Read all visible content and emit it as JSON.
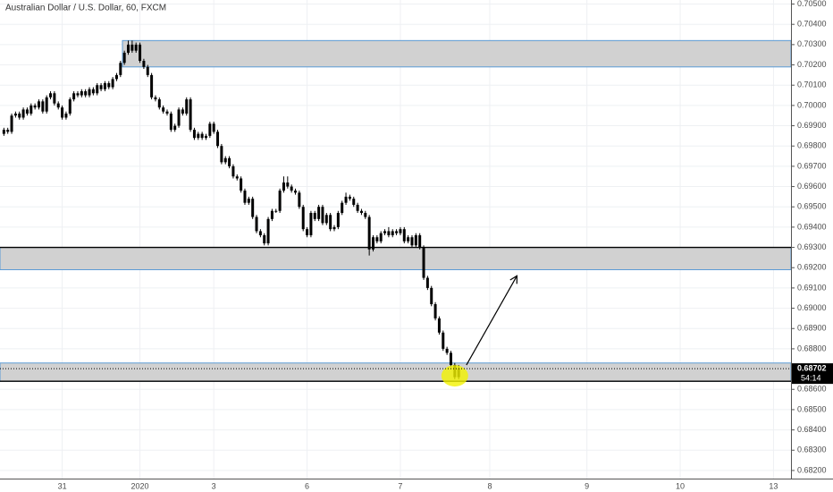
{
  "chart_data": {
    "type": "candlestick",
    "title": "Australian Dollar / U.S. Dollar, 60, FXCM",
    "xlim": [
      -1,
      202.5
    ],
    "xticks": [
      {
        "value": 15,
        "label": "31"
      },
      {
        "value": 35,
        "label": "2020"
      },
      {
        "value": 54,
        "label": "3"
      },
      {
        "value": 78,
        "label": "6"
      },
      {
        "value": 102,
        "label": "7"
      },
      {
        "value": 125,
        "label": "8"
      },
      {
        "value": 150,
        "label": "9"
      },
      {
        "value": 174,
        "label": "10"
      },
      {
        "value": 198,
        "label": "13"
      }
    ],
    "ylim": [
      0.6816,
      0.7052
    ],
    "yticks": [
      {
        "value": 0.705,
        "label": "0.70500"
      },
      {
        "value": 0.704,
        "label": "0.70400"
      },
      {
        "value": 0.703,
        "label": "0.70300"
      },
      {
        "value": 0.702,
        "label": "0.70200"
      },
      {
        "value": 0.701,
        "label": "0.70100"
      },
      {
        "value": 0.7,
        "label": "0.70000"
      },
      {
        "value": 0.699,
        "label": "0.69900"
      },
      {
        "value": 0.698,
        "label": "0.69800"
      },
      {
        "value": 0.697,
        "label": "0.69700"
      },
      {
        "value": 0.696,
        "label": "0.69600"
      },
      {
        "value": 0.695,
        "label": "0.69500"
      },
      {
        "value": 0.694,
        "label": "0.69400"
      },
      {
        "value": 0.693,
        "label": "0.69300"
      },
      {
        "value": 0.692,
        "label": "0.69200"
      },
      {
        "value": 0.691,
        "label": "0.69100"
      },
      {
        "value": 0.69,
        "label": "0.69000"
      },
      {
        "value": 0.689,
        "label": "0.68900"
      },
      {
        "value": 0.688,
        "label": "0.68800"
      },
      {
        "value": 0.687,
        "label": "0.68700"
      },
      {
        "value": 0.686,
        "label": "0.68600"
      },
      {
        "value": 0.685,
        "label": "0.68500"
      },
      {
        "value": 0.684,
        "label": "0.68400"
      },
      {
        "value": 0.683,
        "label": "0.68300"
      },
      {
        "value": 0.682,
        "label": "0.68200"
      }
    ],
    "grid": true,
    "color": "#000000",
    "open": [
      0.6986,
      0.6988,
      0.6987,
      0.6995,
      0.6996,
      0.6994,
      0.6998,
      0.6996,
      0.7,
      0.6999,
      0.7002,
      0.6997,
      0.7004,
      0.7006,
      0.7001,
      0.6999,
      0.6994,
      0.6996,
      0.7003,
      0.7006,
      0.7005,
      0.7007,
      0.7005,
      0.7008,
      0.7006,
      0.701,
      0.7008,
      0.7011,
      0.7009,
      0.7013,
      0.7015,
      0.7021,
      0.7026,
      0.703,
      0.7027,
      0.703,
      0.7022,
      0.7019,
      0.7015,
      0.7004,
      0.7003,
      0.6999,
      0.6997,
      0.6996,
      0.6988,
      0.699,
      0.6998,
      0.6996,
      0.7003,
      0.6988,
      0.6984,
      0.6986,
      0.6984,
      0.6985,
      0.6991,
      0.6987,
      0.698,
      0.6972,
      0.6974,
      0.697,
      0.6965,
      0.6964,
      0.6958,
      0.6952,
      0.6954,
      0.6945,
      0.6938,
      0.6936,
      0.6932,
      0.6944,
      0.6948,
      0.6948,
      0.6958,
      0.6962,
      0.696,
      0.6958,
      0.6957,
      0.695,
      0.6939,
      0.6936,
      0.6947,
      0.6944,
      0.695,
      0.6942,
      0.6946,
      0.6939,
      0.694,
      0.6947,
      0.6952,
      0.6955,
      0.6954,
      0.6951,
      0.6948,
      0.6947,
      0.6945,
      0.6929,
      0.6935,
      0.6933,
      0.6937,
      0.6938,
      0.6936,
      0.6938,
      0.6937,
      0.6939,
      0.6933,
      0.6935,
      0.6931,
      0.6936,
      0.693,
      0.6915,
      0.691,
      0.6902,
      0.6895,
      0.6888,
      0.688,
      0.6878,
      0.6872,
      0.6866
    ],
    "high": [
      0.6989,
      0.6989,
      0.6996,
      0.6997,
      0.6997,
      0.6999,
      0.6999,
      0.7001,
      0.7001,
      0.7003,
      0.7003,
      0.7005,
      0.7007,
      0.7007,
      0.7002,
      0.7,
      0.6997,
      0.7004,
      0.7007,
      0.7007,
      0.7008,
      0.7008,
      0.7009,
      0.7009,
      0.7011,
      0.7011,
      0.7012,
      0.7012,
      0.7014,
      0.7016,
      0.7022,
      0.7027,
      0.7032,
      0.7032,
      0.7031,
      0.7031,
      0.7023,
      0.702,
      0.7016,
      0.7005,
      0.7004,
      0.7,
      0.6998,
      0.6997,
      0.6991,
      0.6999,
      0.6999,
      0.7004,
      0.7004,
      0.6989,
      0.6987,
      0.6987,
      0.6986,
      0.6992,
      0.6992,
      0.6988,
      0.6981,
      0.6975,
      0.6975,
      0.6971,
      0.6966,
      0.6965,
      0.6959,
      0.6955,
      0.6955,
      0.6946,
      0.6939,
      0.6937,
      0.6945,
      0.6949,
      0.6949,
      0.6959,
      0.6965,
      0.6965,
      0.6961,
      0.6959,
      0.6958,
      0.6951,
      0.694,
      0.6948,
      0.6948,
      0.6951,
      0.6951,
      0.6947,
      0.6947,
      0.6941,
      0.6948,
      0.6953,
      0.6957,
      0.6956,
      0.6955,
      0.6952,
      0.6949,
      0.6948,
      0.6946,
      0.6936,
      0.6936,
      0.6938,
      0.6939,
      0.694,
      0.6939,
      0.6939,
      0.694,
      0.694,
      0.6936,
      0.6936,
      0.6937,
      0.6937,
      0.6931,
      0.6916,
      0.6911,
      0.6903,
      0.6896,
      0.6889,
      0.6881,
      0.6879,
      0.6873,
      0.6872
    ],
    "low": [
      0.6985,
      0.6986,
      0.6986,
      0.6994,
      0.6993,
      0.6993,
      0.6995,
      0.6995,
      0.6998,
      0.6998,
      0.6996,
      0.6996,
      0.7003,
      0.7,
      0.6998,
      0.6993,
      0.6993,
      0.6995,
      0.7002,
      0.7004,
      0.7004,
      0.7004,
      0.7004,
      0.7005,
      0.7005,
      0.7007,
      0.7007,
      0.7008,
      0.7008,
      0.7012,
      0.7014,
      0.702,
      0.7025,
      0.7026,
      0.7026,
      0.7021,
      0.7018,
      0.7014,
      0.7003,
      0.7002,
      0.6998,
      0.6996,
      0.6995,
      0.6987,
      0.6987,
      0.6989,
      0.6995,
      0.6995,
      0.6987,
      0.6983,
      0.6983,
      0.6983,
      0.6983,
      0.6984,
      0.6986,
      0.6979,
      0.6971,
      0.6971,
      0.6969,
      0.6964,
      0.6963,
      0.6957,
      0.6951,
      0.6951,
      0.6944,
      0.6937,
      0.6935,
      0.6931,
      0.6931,
      0.6943,
      0.6947,
      0.6947,
      0.6957,
      0.6959,
      0.6957,
      0.6956,
      0.6949,
      0.6938,
      0.6935,
      0.6935,
      0.6943,
      0.6943,
      0.6941,
      0.6941,
      0.6938,
      0.6938,
      0.6939,
      0.6946,
      0.6951,
      0.6953,
      0.695,
      0.6947,
      0.6946,
      0.6944,
      0.6926,
      0.6928,
      0.6932,
      0.6932,
      0.6936,
      0.6935,
      0.6935,
      0.6936,
      0.6936,
      0.6932,
      0.6932,
      0.693,
      0.693,
      0.6929,
      0.6914,
      0.6909,
      0.6901,
      0.6894,
      0.6887,
      0.6879,
      0.6877,
      0.6871,
      0.6865,
      0.6865
    ],
    "close": [
      0.6988,
      0.6987,
      0.6995,
      0.6996,
      0.6994,
      0.6998,
      0.6996,
      0.7,
      0.6999,
      0.7002,
      0.6997,
      0.7004,
      0.7006,
      0.7001,
      0.6999,
      0.6994,
      0.6996,
      0.7003,
      0.7006,
      0.7005,
      0.7007,
      0.7005,
      0.7008,
      0.7006,
      0.701,
      0.7008,
      0.7011,
      0.7009,
      0.7013,
      0.7015,
      0.7021,
      0.7026,
      0.703,
      0.7027,
      0.703,
      0.7022,
      0.7019,
      0.7015,
      0.7004,
      0.7003,
      0.6999,
      0.6997,
      0.6996,
      0.6988,
      0.699,
      0.6998,
      0.6996,
      0.7003,
      0.6988,
      0.6984,
      0.6986,
      0.6984,
      0.6985,
      0.6991,
      0.6987,
      0.698,
      0.6972,
      0.6974,
      0.697,
      0.6965,
      0.6964,
      0.6958,
      0.6952,
      0.6954,
      0.6945,
      0.6938,
      0.6936,
      0.6932,
      0.6944,
      0.6948,
      0.6948,
      0.6958,
      0.6962,
      0.696,
      0.6958,
      0.6957,
      0.695,
      0.6939,
      0.6936,
      0.6947,
      0.6944,
      0.695,
      0.6942,
      0.6946,
      0.6939,
      0.694,
      0.6947,
      0.6952,
      0.6955,
      0.6954,
      0.6951,
      0.6948,
      0.6947,
      0.6945,
      0.6929,
      0.6935,
      0.6933,
      0.6937,
      0.6938,
      0.6936,
      0.6938,
      0.6937,
      0.6939,
      0.6933,
      0.6935,
      0.6931,
      0.6936,
      0.693,
      0.6915,
      0.691,
      0.6902,
      0.6895,
      0.6888,
      0.688,
      0.6878,
      0.6872,
      0.6866,
      0.68702
    ],
    "last_price": {
      "value": 0.68702,
      "label": "0.68702"
    },
    "countdown": "54:14",
    "zones": [
      {
        "start": 30.5,
        "top": 0.7032,
        "bottom": 0.7019
      },
      {
        "start": -1,
        "top": 0.693,
        "bottom": 0.6919
      },
      {
        "start": -1,
        "top": 0.6873,
        "bottom": 0.6864
      }
    ],
    "arrow": {
      "from": [
        119,
        0.6872
      ],
      "to": [
        132,
        0.6916
      ]
    },
    "highlight": [
      116,
      0.68667
    ]
  }
}
